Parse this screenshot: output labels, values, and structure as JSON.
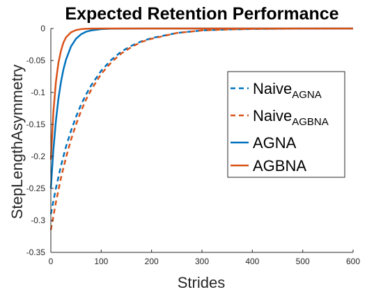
{
  "chart_data": {
    "type": "line",
    "title": "Expected Retention Performance",
    "xlabel": "Strides",
    "ylabel": "StepLengthAsymmetry",
    "xlim": [
      0,
      600
    ],
    "ylim": [
      -0.35,
      0
    ],
    "xticks": [
      "0",
      "100",
      "200",
      "300",
      "400",
      "500",
      "600"
    ],
    "yticks": [
      "0",
      "-0.05",
      "-0.1",
      "-0.15",
      "-0.2",
      "-0.25",
      "-0.3",
      "-0.35"
    ],
    "grid": false,
    "legend_position": "right",
    "series": [
      {
        "name": "Naive",
        "name_subscript": "AGNA",
        "color": "#0072BD",
        "style": "dashed",
        "x": [
          0,
          10,
          20,
          30,
          40,
          50,
          60,
          70,
          80,
          100,
          120,
          140,
          160,
          180,
          200,
          250,
          300,
          350,
          400,
          500,
          600
        ],
        "y": [
          -0.29,
          -0.25,
          -0.215,
          -0.185,
          -0.16,
          -0.138,
          -0.119,
          -0.103,
          -0.089,
          -0.066,
          -0.049,
          -0.036,
          -0.027,
          -0.02,
          -0.015,
          -0.007,
          -0.003,
          -0.0015,
          -0.0007,
          -0.0001,
          0
        ]
      },
      {
        "name": "Naive",
        "name_subscript": "AGBNA",
        "color": "#D95319",
        "style": "dashed",
        "x": [
          0,
          10,
          20,
          30,
          40,
          50,
          60,
          70,
          80,
          100,
          120,
          140,
          160,
          180,
          200,
          250,
          300,
          350,
          400,
          500,
          600
        ],
        "y": [
          -0.315,
          -0.272,
          -0.234,
          -0.202,
          -0.174,
          -0.15,
          -0.129,
          -0.111,
          -0.096,
          -0.071,
          -0.053,
          -0.039,
          -0.029,
          -0.021,
          -0.016,
          -0.007,
          -0.003,
          -0.0015,
          -0.0007,
          -0.0001,
          0
        ]
      },
      {
        "name": "AGNA",
        "name_subscript": "",
        "color": "#0072BD",
        "style": "solid",
        "x": [
          0,
          5,
          10,
          15,
          20,
          25,
          30,
          40,
          50,
          60,
          70,
          80,
          100,
          120,
          150,
          200,
          300,
          600
        ],
        "y": [
          -0.25,
          -0.19,
          -0.145,
          -0.11,
          -0.084,
          -0.064,
          -0.049,
          -0.028,
          -0.016,
          -0.009,
          -0.005,
          -0.003,
          -0.001,
          -0.0003,
          -0.0001,
          0,
          0,
          0
        ]
      },
      {
        "name": "AGBNA",
        "name_subscript": "",
        "color": "#D95319",
        "style": "solid",
        "x": [
          0,
          5,
          10,
          15,
          20,
          25,
          30,
          40,
          50,
          60,
          70,
          80,
          100,
          150,
          200,
          300,
          600
        ],
        "y": [
          -0.205,
          -0.131,
          -0.084,
          -0.054,
          -0.035,
          -0.022,
          -0.014,
          -0.006,
          -0.0024,
          -0.001,
          -0.0004,
          -0.0002,
          0,
          0,
          0,
          0,
          0
        ]
      }
    ]
  }
}
